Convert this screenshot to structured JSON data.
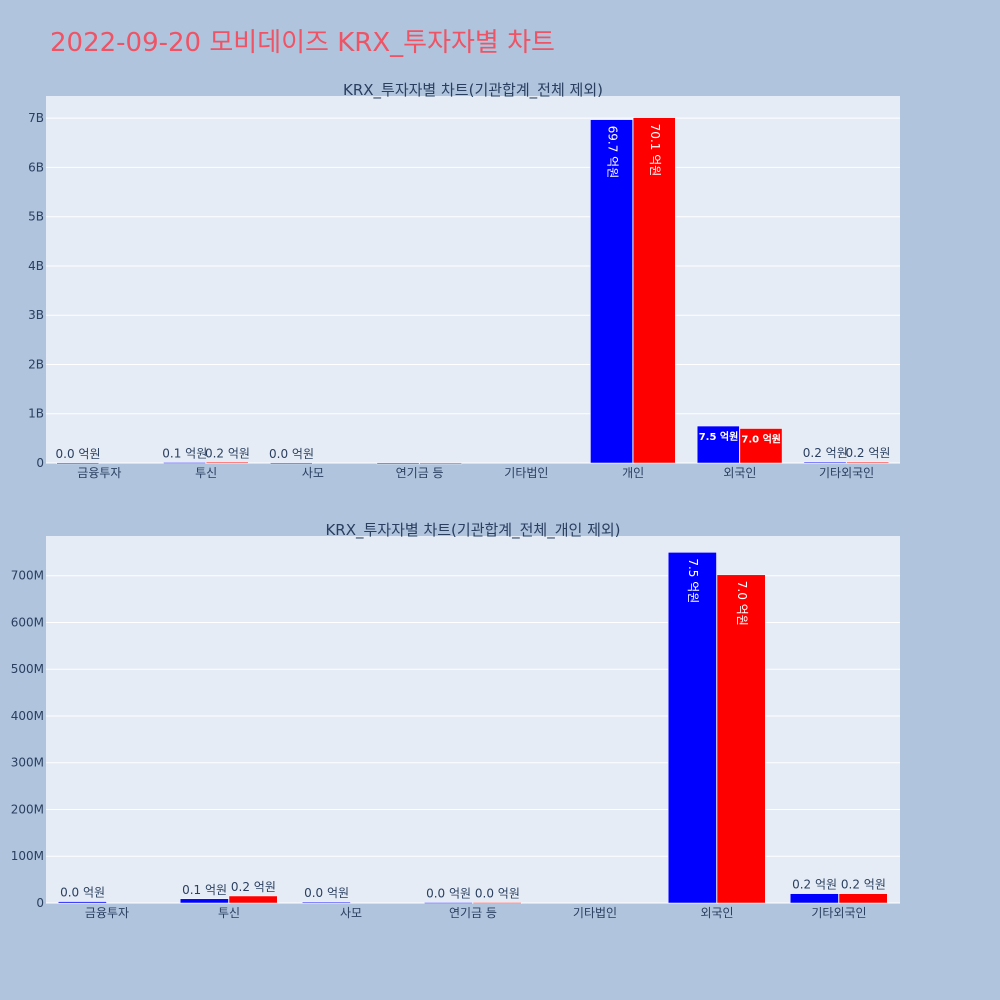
{
  "page": {
    "title": "2022-09-20 모비데이즈 KRX_투자자별 차트"
  },
  "colors": {
    "background": "#b0c4de",
    "plot_bg": "#e5ecf6",
    "grid": "#ffffff",
    "title": "#ef5364",
    "text": "#2a3f5f",
    "series_a": "#0000ff",
    "series_b": "#ff0000"
  },
  "chart_data": [
    {
      "type": "bar",
      "title": "KRX_투자자별 차트(기관합계_전체 제외)",
      "categories": [
        "금융투자",
        "투신",
        "사모",
        "연기금 등",
        "기타법인",
        "개인",
        "외국인",
        "기타외국인"
      ],
      "series": [
        {
          "color": "#0000ff",
          "values": [
            3000000,
            10000000,
            3000000,
            1000000,
            0,
            6970000000,
            750000000,
            20000000
          ],
          "labels": [
            "0.0 억원",
            "0.1 억원",
            "0.0 억원",
            "",
            "",
            "69.7 억원",
            "7.5 억원",
            "0.2 억원"
          ]
        },
        {
          "color": "#ff0000",
          "values": [
            0,
            15000000,
            0,
            1000000,
            0,
            7010000000,
            700000000,
            20000000
          ],
          "labels": [
            "",
            "0.2 억원",
            "",
            "",
            "",
            "70.1 억원",
            "7.0 억원",
            "0.2 억원"
          ]
        }
      ],
      "ylim": [
        0,
        7450000000
      ],
      "yticks": [
        0,
        1000000000,
        2000000000,
        3000000000,
        4000000000,
        5000000000,
        6000000000,
        7000000000
      ],
      "ytick_labels": [
        "0",
        "1B",
        "2B",
        "3B",
        "4B",
        "5B",
        "6B",
        "7B"
      ],
      "grid": true
    },
    {
      "type": "bar",
      "title": "KRX_투자자별 차트(기관합계_전체_개인 제외)",
      "categories": [
        "금융투자",
        "투신",
        "사모",
        "연기금 등",
        "기타법인",
        "외국인",
        "기타외국인"
      ],
      "series": [
        {
          "color": "#0000ff",
          "values": [
            3000000,
            9000000,
            2000000,
            1000000,
            0,
            750000000,
            20000000
          ],
          "labels": [
            "0.0 억원",
            "0.1 억원",
            "0.0 억원",
            "0.0 억원",
            "",
            "7.5 억원",
            "0.2 억원"
          ]
        },
        {
          "color": "#ff0000",
          "values": [
            0,
            15000000,
            0,
            1000000,
            0,
            702000000,
            20000000
          ],
          "labels": [
            "",
            "0.2 억원",
            "",
            "0.0 억원",
            "",
            "7.0 억원",
            "0.2 억원"
          ]
        }
      ],
      "ylim": [
        0,
        785000000
      ],
      "yticks": [
        0,
        100000000,
        200000000,
        300000000,
        400000000,
        500000000,
        600000000,
        700000000
      ],
      "ytick_labels": [
        "0",
        "100M",
        "200M",
        "300M",
        "400M",
        "500M",
        "600M",
        "700M"
      ],
      "grid": true
    }
  ]
}
